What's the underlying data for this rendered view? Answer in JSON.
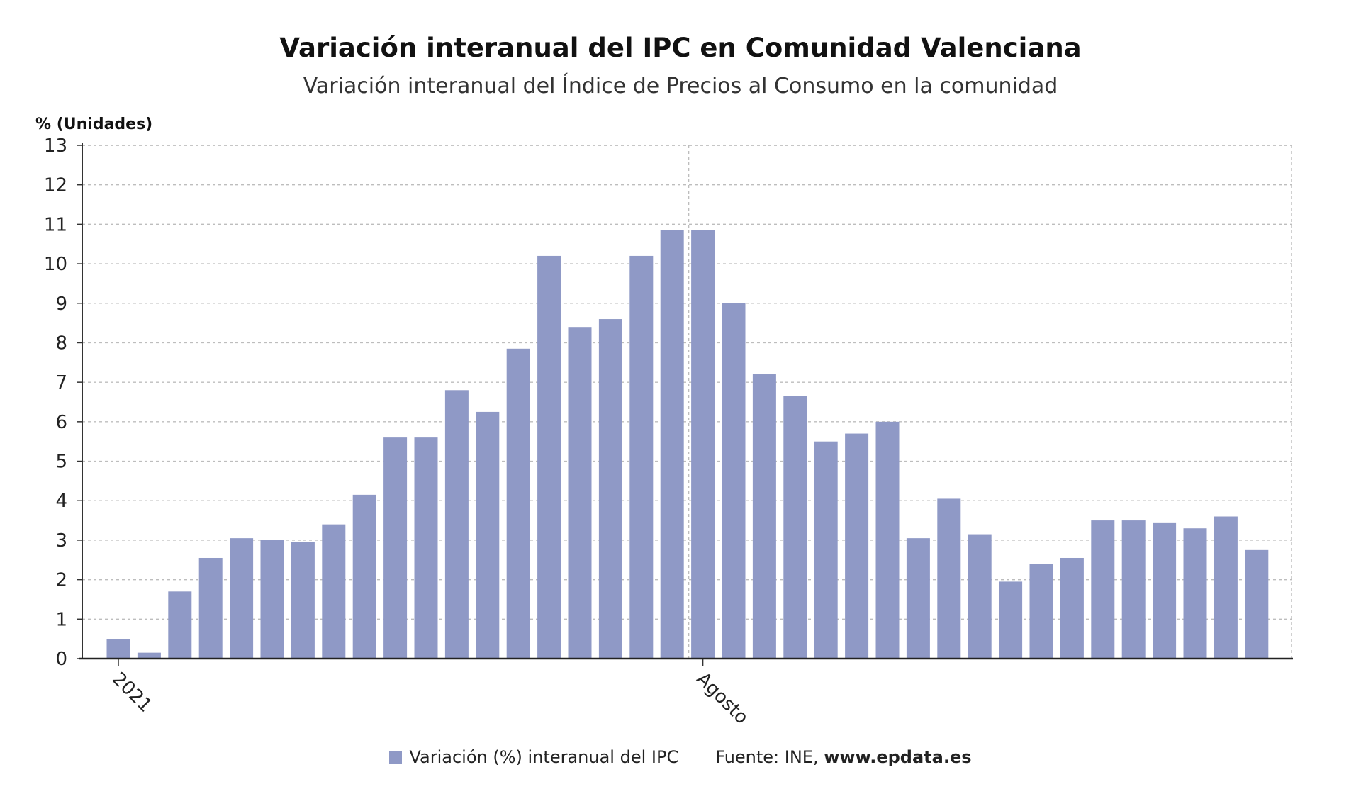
{
  "chart_data": {
    "type": "bar",
    "title": "Variación interanual del IPC en Comunidad Valenciana",
    "subtitle": "Variación interanual del Índice de Precios al Consumo en la comunidad",
    "ylabel": "% (Unidades)",
    "ylim": [
      0,
      13
    ],
    "yticks": [
      "0",
      "1",
      "2",
      "3",
      "4",
      "5",
      "6",
      "7",
      "8",
      "9",
      "10",
      "11",
      "12",
      "13"
    ],
    "xtick_labels": [
      {
        "index": 0,
        "label": "2021"
      },
      {
        "index": 19,
        "label": "Agosto"
      }
    ],
    "grid": true,
    "color": "#8f99c6",
    "series": [
      {
        "name": "Variación (%) interanual del IPC",
        "values": [
          0.5,
          0.15,
          1.7,
          2.55,
          3.05,
          3.0,
          2.95,
          3.4,
          4.15,
          5.6,
          5.6,
          6.8,
          6.25,
          7.85,
          10.2,
          8.4,
          8.6,
          10.2,
          10.85,
          10.85,
          9.0,
          7.2,
          6.65,
          5.5,
          5.7,
          6.0,
          3.05,
          4.05,
          3.15,
          1.95,
          2.4,
          2.55,
          3.5,
          3.5,
          3.45,
          3.3,
          3.6,
          2.75
        ]
      }
    ]
  },
  "legend": {
    "series_label": "Variación (%) interanual del IPC",
    "source_prefix": "Fuente: INE, ",
    "source_site": "www.epdata.es"
  }
}
